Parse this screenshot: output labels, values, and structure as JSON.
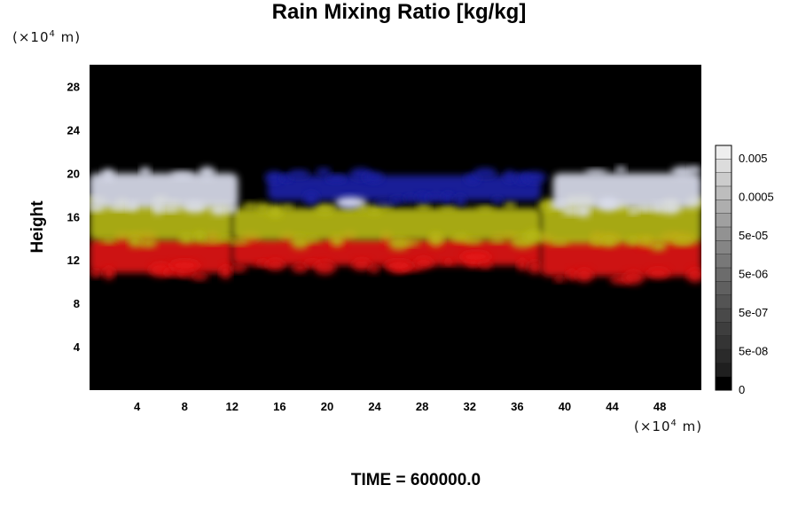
{
  "chart_data": {
    "type": "heatmap",
    "title": "Rain Mixing Ratio [kg/kg]",
    "ylabel": "Height",
    "xlabel": "",
    "x_unit": {
      "base": "(×10",
      "exp": "4",
      "rest": " m)"
    },
    "y_unit": {
      "base": "(×10",
      "exp": "4",
      "rest": " m)"
    },
    "xlim": [
      0,
      51.5
    ],
    "ylim": [
      0,
      30
    ],
    "x_ticks": [
      "4",
      "8",
      "12",
      "16",
      "20",
      "24",
      "28",
      "32",
      "36",
      "40",
      "44",
      "48"
    ],
    "y_ticks": [
      "4",
      "8",
      "12",
      "16",
      "20",
      "24",
      "28"
    ],
    "colorbar": {
      "labels": [
        "0.005",
        "0.0005",
        "5e-05",
        "5e-06",
        "5e-07",
        "5e-08",
        "0"
      ],
      "colors": [
        "#eeeeee",
        "#dcdcdc",
        "#cccccc",
        "#bdbdbd",
        "#aeaeae",
        "#a0a0a0",
        "#929292",
        "#858585",
        "#787878",
        "#6c6c6c",
        "#606060",
        "#545454",
        "#494949",
        "#3e3e3e",
        "#343434",
        "#2a2a2a",
        "#1f1f1f",
        "#000000"
      ]
    },
    "field_colors": {
      "background": "#000000",
      "red": "#e41212",
      "yellow": "#b8bb12",
      "green": "#5a8a20",
      "white": "#dde0f0",
      "blue": "#1a22a8"
    },
    "bands": [
      {
        "color": "red",
        "regions": [
          {
            "x": [
              0,
              12
            ],
            "y": [
              10.8,
              14
            ]
          },
          {
            "x": [
              12,
              38
            ],
            "y": [
              11.5,
              14
            ]
          },
          {
            "x": [
              38,
              51.5
            ],
            "y": [
              10.5,
              14
            ]
          }
        ]
      },
      {
        "color": "yellow",
        "regions": [
          {
            "x": [
              0,
              12
            ],
            "y": [
              13.8,
              17.3
            ]
          },
          {
            "x": [
              12,
              38
            ],
            "y": [
              13.8,
              16.8
            ]
          },
          {
            "x": [
              38,
              51.5
            ],
            "y": [
              13.5,
              17.2
            ]
          }
        ]
      },
      {
        "color": "white",
        "regions": [
          {
            "x": [
              0,
              12.5
            ],
            "y": [
              16.8,
              20
            ]
          },
          {
            "x": [
              39,
              51.5
            ],
            "y": [
              16.8,
              20
            ]
          }
        ]
      },
      {
        "color": "blue",
        "regions": [
          {
            "x": [
              15,
              38
            ],
            "y": [
              17.5,
              19.8
            ]
          }
        ]
      }
    ],
    "isolated_patches": [
      {
        "x": 8,
        "y": 11.5,
        "color": "red"
      },
      {
        "x": 26,
        "y": 11.5,
        "color": "red"
      },
      {
        "x": 32.5,
        "y": 12.3,
        "color": "red"
      },
      {
        "x": 22,
        "y": 17.3,
        "color": "white"
      }
    ]
  },
  "footer": {
    "time_label": "TIME = 600000.0"
  }
}
